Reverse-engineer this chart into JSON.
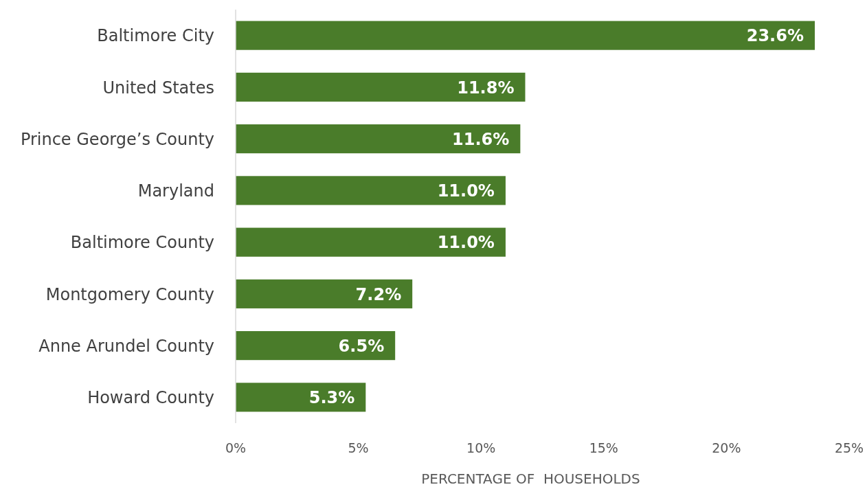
{
  "chart_data": {
    "type": "bar",
    "orientation": "horizontal",
    "xlabel": "PERCENTAGE OF  HOUSEHOLDS",
    "categories": [
      "Baltimore City",
      "United States",
      "Prince George’s County",
      "Maryland",
      "Baltimore County",
      "Montgomery County",
      "Anne Arundel County",
      "Howard County"
    ],
    "values": [
      23.6,
      11.8,
      11.6,
      11.0,
      11.0,
      7.2,
      6.5,
      5.3
    ],
    "value_labels": [
      "23.6%",
      "11.8%",
      "11.6%",
      "11.0%",
      "11.0%",
      "7.2%",
      "6.5%",
      "5.3%"
    ],
    "color": "#4a7c2a",
    "xlim": [
      0,
      25
    ],
    "xticks": [
      {
        "value": 0,
        "label": "0%"
      },
      {
        "value": 5,
        "label": "5%"
      },
      {
        "value": 10,
        "label": "10%"
      },
      {
        "value": 15,
        "label": "15%"
      },
      {
        "value": 20,
        "label": "20%"
      },
      {
        "value": 25,
        "label": "25%"
      }
    ],
    "grid": false
  }
}
